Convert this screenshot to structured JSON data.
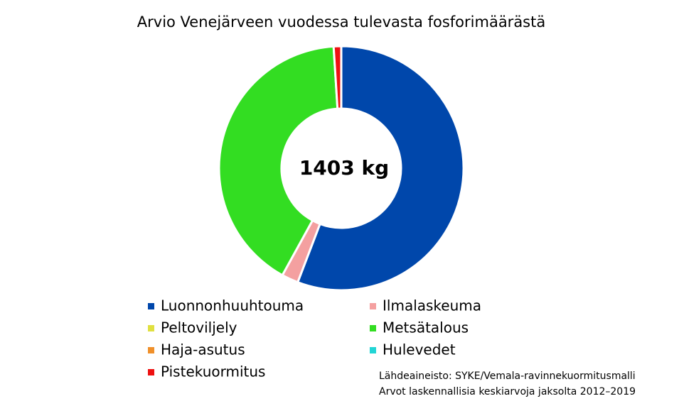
{
  "chart_data": {
    "type": "donut",
    "title": "Arvio Venejärveen vuodessa tulevasta fosforimäärästä",
    "center_label": "1403 kg",
    "categories": [
      "Luonnonhuuhtouma",
      "Ilmalaskeuma",
      "Peltoviljely",
      "Metsätalous",
      "Haja-asutus",
      "Hulevedet",
      "Pistekuormitus"
    ],
    "values": [
      55.8,
      2.2,
      0,
      41,
      0,
      0,
      1
    ],
    "colors": [
      "#0047ab",
      "#f4a0a0",
      "#e0e040",
      "#33dd22",
      "#f0902a",
      "#22d5d5",
      "#ee1111"
    ],
    "notes": [
      "Lähdeaineisto: SYKE/Vemala-ravinnekuormitusmalli",
      "Arvot laskennallisia keskiarvoja jaksolta 2012–2019"
    ]
  }
}
